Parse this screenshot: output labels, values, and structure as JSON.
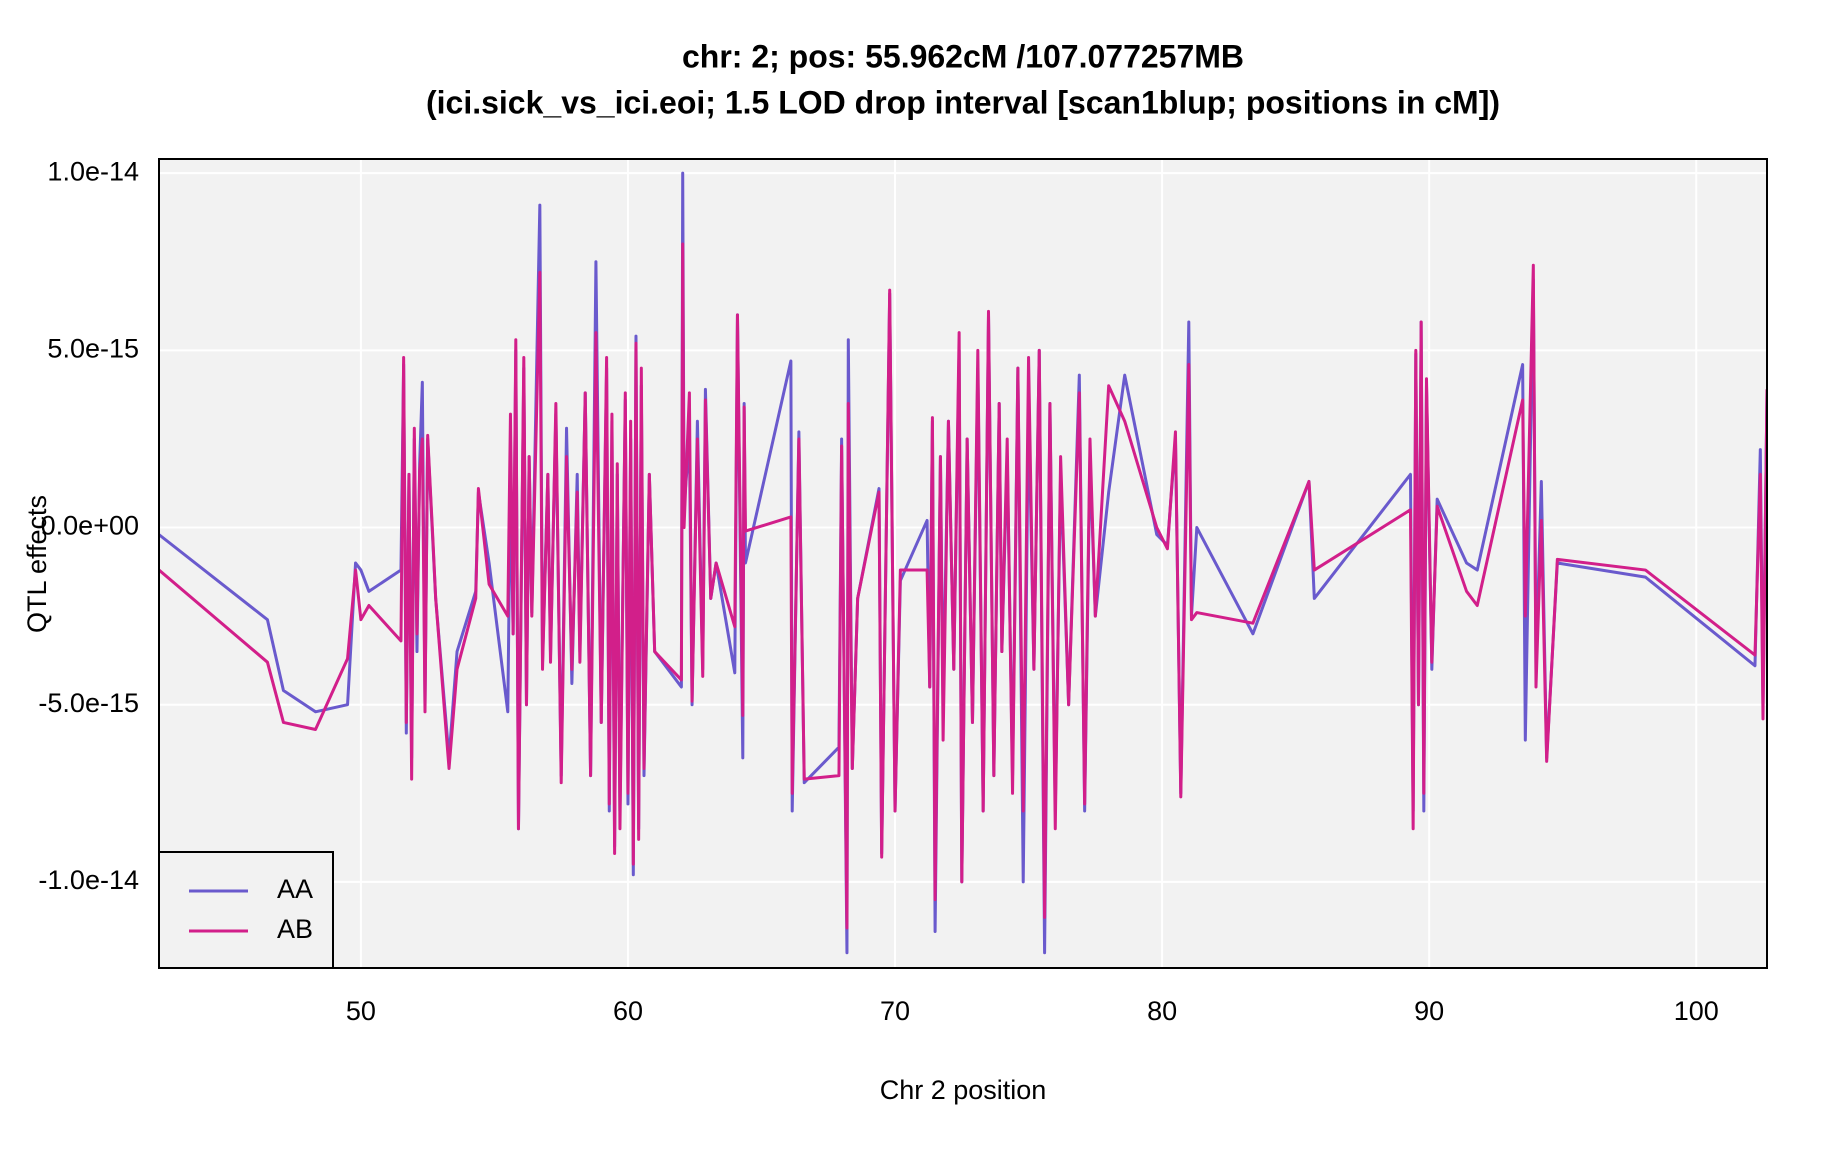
{
  "chart_data": {
    "type": "line",
    "title": "chr: 2; pos: 55.962cM /107.077257MB",
    "subtitle": "(ici.sick_vs_ici.eoi; 1.5 LOD drop interval [scan1blup; positions in cM])",
    "x_label": "Chr 2 position",
    "y_label": "QTL effects",
    "xlim": [
      42.44,
      102.65
    ],
    "xticks": [
      50,
      60,
      70,
      80,
      90,
      100
    ],
    "ylim": [
      -1.243e-14,
      1.04e-14
    ],
    "yticks": [
      {
        "value": -1e-14,
        "label": "-1.0e-14"
      },
      {
        "value": -5e-15,
        "label": "-5.0e-15"
      },
      {
        "value": 0,
        "label": "0.0e+00"
      },
      {
        "value": 5e-15,
        "label": "5.0e-15"
      },
      {
        "value": 1e-14,
        "label": "1.0e-14"
      }
    ],
    "grid": true,
    "legend": "bottom-left",
    "background": "#f2f2f2",
    "x": [
      42.44,
      46.5,
      47.1,
      48.3,
      49.5,
      49.8,
      50.0,
      50.3,
      51.5,
      51.6,
      51.7,
      51.8,
      51.9,
      52.0,
      52.1,
      52.2,
      52.3,
      52.4,
      52.5,
      52.7,
      52.8,
      53.3,
      53.6,
      54.3,
      54.4,
      54.8,
      55.5,
      55.6,
      55.7,
      55.8,
      55.9,
      56.1,
      56.2,
      56.3,
      56.4,
      56.7,
      56.8,
      57.0,
      57.1,
      57.3,
      57.5,
      57.7,
      57.9,
      58.1,
      58.2,
      58.4,
      58.6,
      58.8,
      59.0,
      59.2,
      59.3,
      59.4,
      59.5,
      59.6,
      59.7,
      59.9,
      60.0,
      60.1,
      60.2,
      60.3,
      60.4,
      60.5,
      60.6,
      60.8,
      61.0,
      62.0,
      62.05,
      62.1,
      62.3,
      62.4,
      62.6,
      62.8,
      62.9,
      63.1,
      63.3,
      64.0,
      64.1,
      64.3,
      64.35,
      64.4,
      66.1,
      66.15,
      66.4,
      66.6,
      67.9,
      68.0,
      68.2,
      68.25,
      68.4,
      68.6,
      69.4,
      69.5,
      69.8,
      70.0,
      70.2,
      71.2,
      71.3,
      71.4,
      71.5,
      71.7,
      71.8,
      72.0,
      72.2,
      72.4,
      72.5,
      72.7,
      72.9,
      73.1,
      73.3,
      73.5,
      73.7,
      73.9,
      74.0,
      74.2,
      74.4,
      74.6,
      74.8,
      75.0,
      75.2,
      75.4,
      75.6,
      75.8,
      76.0,
      76.2,
      76.5,
      76.9,
      77.1,
      77.3,
      77.5,
      78.0,
      78.6,
      79.8,
      80.2,
      80.5,
      80.7,
      81.0,
      81.1,
      81.3,
      83.4,
      85.5,
      85.7,
      89.3,
      89.4,
      89.5,
      89.6,
      89.7,
      89.8,
      89.9,
      90.1,
      90.3,
      91.4,
      91.8,
      93.5,
      93.6,
      93.9,
      94.0,
      94.2,
      94.4,
      94.8,
      98.1,
      102.2,
      102.4,
      102.5,
      102.65
    ],
    "series": [
      {
        "name": "AA",
        "color": "#6a5acd",
        "values": [
          -2e-16,
          -2.6e-15,
          -4.6e-15,
          -5.2e-15,
          -5e-15,
          -1e-15,
          -1.2e-15,
          -1.8e-15,
          -1.2e-15,
          4.6e-15,
          -5.8e-15,
          1.5e-15,
          -6.5e-15,
          2.5e-15,
          -3.5e-15,
          1.8e-15,
          4.1e-15,
          -5e-15,
          2.5e-15,
          -5e-16,
          -2e-15,
          -6.5e-15,
          -3.5e-15,
          -1.8e-15,
          1e-15,
          -1e-15,
          -5.2e-15,
          1.5e-15,
          -3e-15,
          5e-15,
          -8.5e-15,
          4.5e-15,
          -5e-15,
          2e-15,
          -2.4e-15,
          9.1e-15,
          -3.8e-15,
          1.5e-15,
          -3.6e-15,
          3.2e-15,
          -7e-15,
          2.8e-15,
          -4.4e-15,
          1.5e-15,
          -3.5e-15,
          3.8e-15,
          -7e-15,
          7.5e-15,
          -5.5e-15,
          4.5e-15,
          -8e-15,
          3e-15,
          -9e-15,
          1.5e-15,
          -8e-15,
          3.6e-15,
          -7.8e-15,
          2.5e-15,
          -9.8e-15,
          5.4e-15,
          -8.5e-15,
          4e-15,
          -7e-15,
          1.5e-15,
          -3.5e-15,
          -4.5e-15,
          1e-14,
          6e-16,
          2.5e-15,
          -5e-15,
          3e-15,
          -4e-15,
          3.9e-15,
          -2e-15,
          -1e-15,
          -4.1e-15,
          6e-15,
          -6.5e-15,
          3.5e-15,
          -1e-15,
          4.7e-15,
          -8e-15,
          2.7e-15,
          -7.2e-15,
          -6.2e-15,
          2.5e-15,
          -1.2e-14,
          5.3e-15,
          -6.8e-15,
          -2e-15,
          1.1e-15,
          -9.2e-15,
          6.6e-15,
          -8e-15,
          -1.5e-15,
          2e-16,
          -4.5e-15,
          3e-15,
          -1.14e-14,
          2e-15,
          -5e-15,
          3e-15,
          -4e-15,
          5e-15,
          -1e-14,
          2.5e-15,
          -5.5e-15,
          4.5e-15,
          -8e-15,
          6e-15,
          -7e-15,
          3.5e-15,
          -3.5e-15,
          2e-15,
          -7e-15,
          4.5e-15,
          -1e-14,
          3.5e-15,
          -4e-15,
          5e-15,
          -1.2e-14,
          3.5e-15,
          -8e-15,
          1.5e-15,
          -5e-15,
          4.3e-15,
          -8e-15,
          2e-15,
          -2.5e-15,
          1e-15,
          4.3e-15,
          -2e-16,
          -5e-16,
          2.5e-15,
          -7.5e-15,
          5.8e-15,
          -2.5e-15,
          0,
          -3e-15,
          1.3e-15,
          -2e-15,
          1.5e-15,
          -8e-15,
          4.9e-15,
          -5e-15,
          5.8e-15,
          -8e-15,
          4e-15,
          -4e-15,
          8e-16,
          -1e-15,
          -1.2e-15,
          4.6e-15,
          -6e-15,
          7e-15,
          -4e-15,
          1.3e-15,
          -6.5e-15,
          -1e-15,
          -1.4e-15,
          -3.9e-15,
          2.2e-15,
          -5e-15,
          3.8e-15
        ]
      },
      {
        "name": "AB",
        "color": "#d21f8a",
        "values": [
          -1.2e-15,
          -3.8e-15,
          -5.5e-15,
          -5.7e-15,
          -3.7e-15,
          -1.2e-15,
          -2.6e-15,
          -2.2e-15,
          -3.2e-15,
          4.8e-15,
          -5.5e-15,
          1.5e-15,
          -7.1e-15,
          2.8e-15,
          -3e-15,
          1.6e-15,
          2.5e-15,
          -5.2e-15,
          2.6e-15,
          -4e-16,
          -2e-15,
          -6.8e-15,
          -4e-15,
          -2e-15,
          1.1e-15,
          -1.6e-15,
          -2.5e-15,
          3.2e-15,
          -3e-15,
          5.3e-15,
          -8.5e-15,
          4.8e-15,
          -5e-15,
          2e-15,
          -2.5e-15,
          7.2e-15,
          -4e-15,
          1.5e-15,
          -3.8e-15,
          3.5e-15,
          -7.2e-15,
          2e-15,
          -4e-15,
          1e-15,
          -3.8e-15,
          3.8e-15,
          -7e-15,
          5.5e-15,
          -5.5e-15,
          4.8e-15,
          -7.8e-15,
          3.2e-15,
          -9.2e-15,
          1.8e-15,
          -8.5e-15,
          3.8e-15,
          -7.5e-15,
          3e-15,
          -9.5e-15,
          5.2e-15,
          -8.8e-15,
          4.5e-15,
          -6.8e-15,
          1.5e-15,
          -3.5e-15,
          -4.3e-15,
          8e-15,
          0,
          3.8e-15,
          -4.9e-15,
          2.5e-15,
          -4.2e-15,
          3.6e-15,
          -2e-15,
          -1e-15,
          -2.8e-15,
          6e-15,
          -5.3e-15,
          3.4e-15,
          -1e-16,
          3e-16,
          -7.5e-15,
          2.5e-15,
          -7.1e-15,
          -7e-15,
          2.3e-15,
          -1.13e-14,
          3.5e-15,
          -6.8e-15,
          -2e-15,
          1e-15,
          -9.3e-15,
          6.7e-15,
          -8e-15,
          -1.2e-15,
          -1.2e-15,
          -4.5e-15,
          3.1e-15,
          -1.05e-14,
          2e-15,
          -6e-15,
          3e-15,
          -4e-15,
          5.5e-15,
          -1e-14,
          2.5e-15,
          -5.5e-15,
          5e-15,
          -8e-15,
          6.1e-15,
          -7e-15,
          3.5e-15,
          -3.5e-15,
          2.5e-15,
          -7.5e-15,
          4.5e-15,
          -8e-15,
          4.8e-15,
          -4e-15,
          5e-15,
          -1.1e-14,
          3.5e-15,
          -8.5e-15,
          2e-15,
          -5e-15,
          3.8e-15,
          -7.8e-15,
          2.5e-15,
          -2.5e-15,
          4e-15,
          3e-15,
          0,
          -6e-16,
          2.7e-15,
          -7.6e-15,
          4.6e-15,
          -2.6e-15,
          -2.4e-15,
          -2.7e-15,
          1.3e-15,
          -1.2e-15,
          5e-16,
          -8.5e-15,
          5e-15,
          -5e-15,
          5.8e-15,
          -7.5e-15,
          4.2e-15,
          -3.8e-15,
          6e-16,
          -1.8e-15,
          -2.2e-15,
          3.6e-15,
          -2.5e-15,
          7.4e-15,
          -4.5e-15,
          2e-16,
          -6.6e-15,
          -9e-16,
          -1.2e-15,
          -3.6e-15,
          1.5e-15,
          -5.4e-15,
          3.9e-15
        ]
      }
    ]
  }
}
